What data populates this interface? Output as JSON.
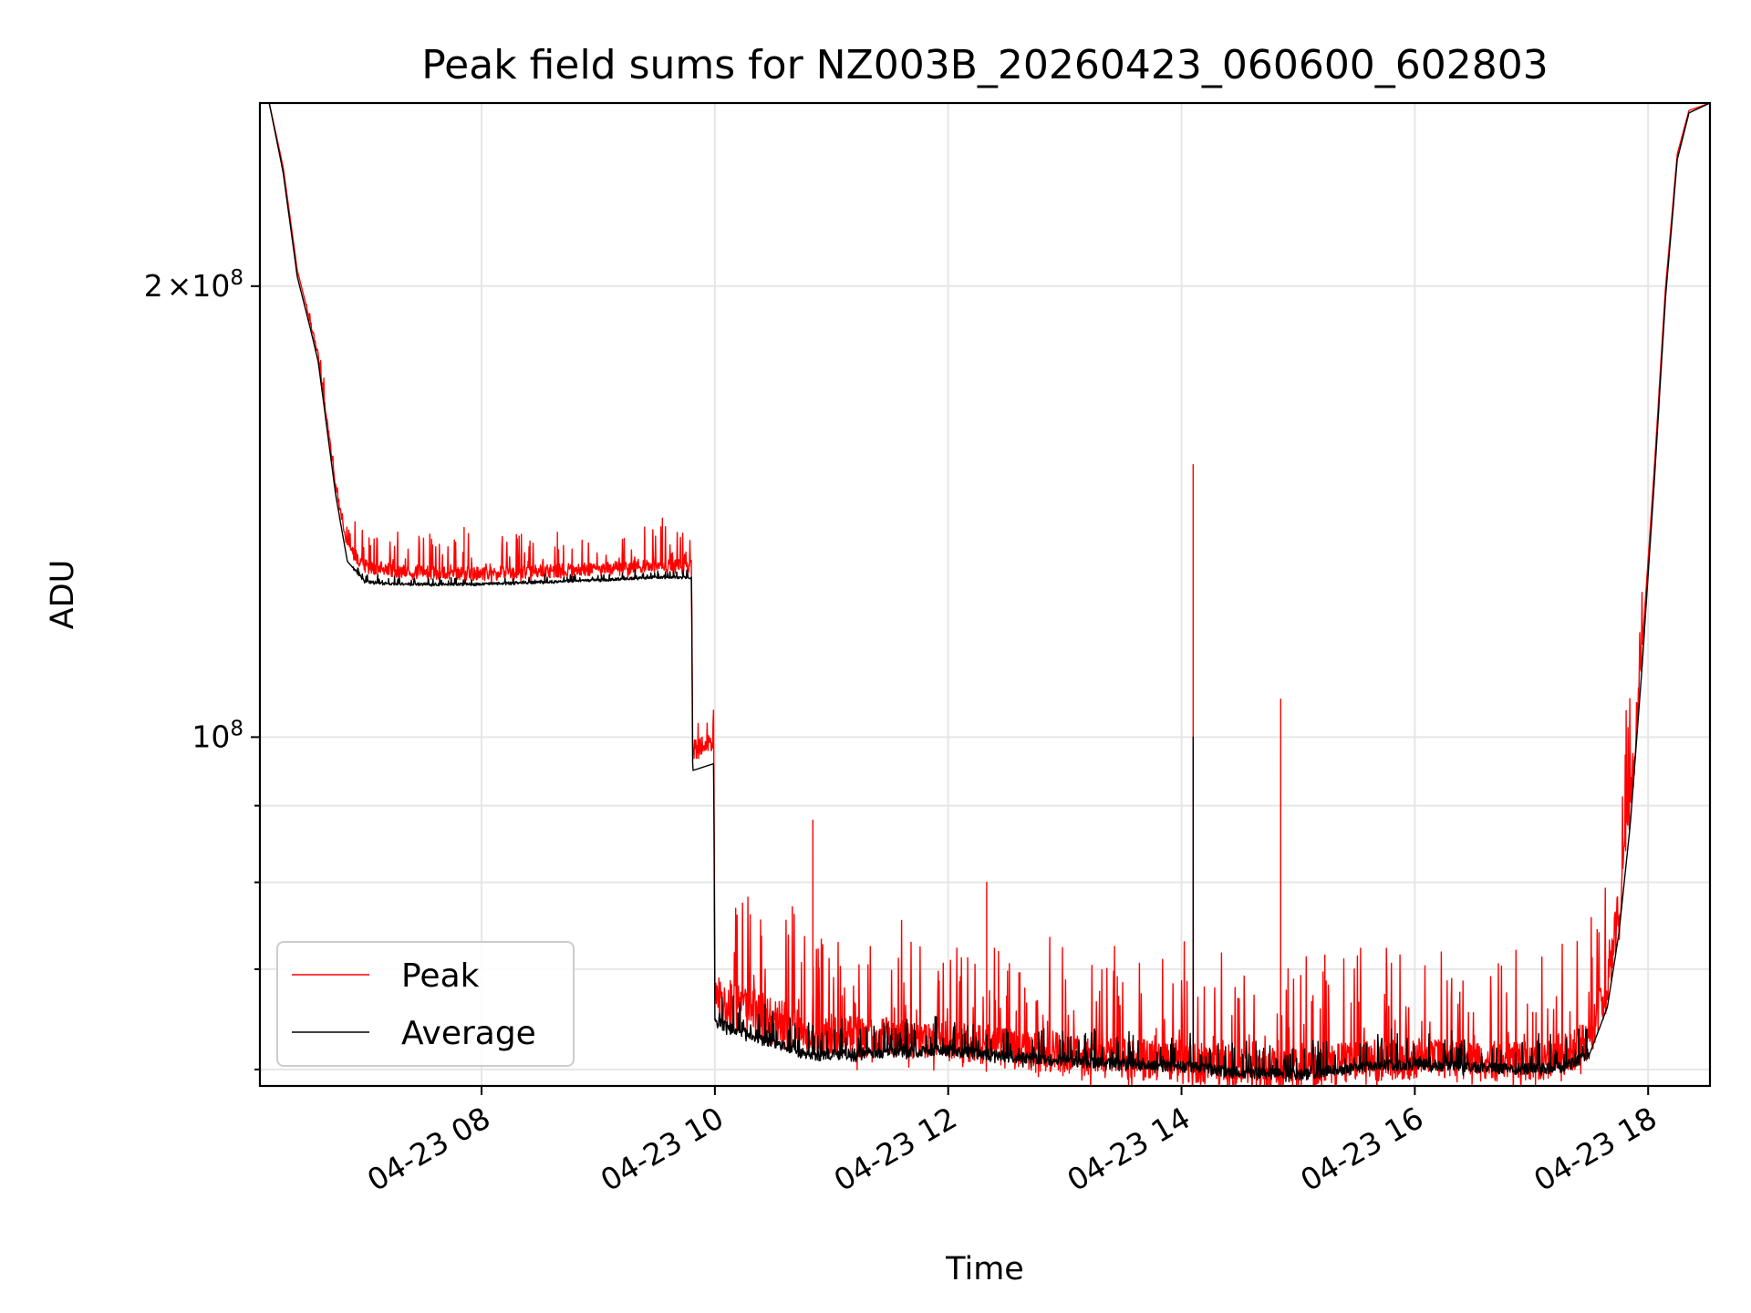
{
  "chart_data": {
    "type": "line",
    "title": "Peak field sums for NZ003B_20260423_060600_602803",
    "xlabel": "Time",
    "ylabel": "ADU",
    "yscale": "log",
    "ylim": [
      58500000,
      265000000
    ],
    "xlim_hours": [
      6.1,
      18.53
    ],
    "x_ticks": [
      {
        "hour": 8,
        "label": "04-23 08"
      },
      {
        "hour": 10,
        "label": "04-23 10"
      },
      {
        "hour": 12,
        "label": "04-23 12"
      },
      {
        "hour": 14,
        "label": "04-23 14"
      },
      {
        "hour": 16,
        "label": "04-23 16"
      },
      {
        "hour": 18,
        "label": "04-23 18"
      }
    ],
    "y_major_ticks": [
      {
        "value": 100000000,
        "base": "10",
        "exp": "8"
      },
      {
        "value": 200000000,
        "mult": "2",
        "times": "×",
        "base": "10",
        "exp": "8"
      }
    ],
    "y_minor_ticks": [
      60000000,
      70000000,
      80000000,
      90000000
    ],
    "grid": true,
    "legend": {
      "position": "lower-left",
      "entries": [
        "Peak",
        "Average"
      ]
    },
    "colors": {
      "Peak": "#ff0000",
      "Average": "#000000",
      "grid": "#e6e6e6",
      "frame": "#000000"
    },
    "series": [
      {
        "name": "Peak",
        "base_points": [
          [
            6.1,
            265000000
          ],
          [
            6.18,
            265000000
          ],
          [
            6.3,
            240000000
          ],
          [
            6.42,
            205000000
          ],
          [
            6.55,
            187000000
          ],
          [
            6.6,
            180000000
          ],
          [
            6.75,
            147000000
          ],
          [
            6.85,
            134000000
          ],
          [
            7.0,
            130000000
          ],
          [
            7.3,
            129000000
          ],
          [
            8.0,
            128500000
          ],
          [
            9.0,
            129500000
          ],
          [
            9.5,
            130000000
          ],
          [
            9.8,
            130000000
          ],
          [
            9.81,
            98000000
          ],
          [
            9.99,
            99000000
          ],
          [
            10.0,
            67000000
          ],
          [
            10.3,
            65500000
          ],
          [
            10.8,
            63500000
          ],
          [
            11.5,
            63000000
          ],
          [
            12.0,
            62700000
          ],
          [
            12.5,
            62000000
          ],
          [
            13.0,
            61500000
          ],
          [
            13.5,
            61000000
          ],
          [
            14.0,
            60800000
          ],
          [
            14.5,
            60200000
          ],
          [
            15.0,
            60000000
          ],
          [
            15.5,
            60800000
          ],
          [
            16.0,
            61000000
          ],
          [
            16.5,
            60800000
          ],
          [
            17.0,
            60700000
          ],
          [
            17.3,
            61500000
          ],
          [
            17.5,
            63000000
          ],
          [
            17.65,
            68000000
          ],
          [
            17.75,
            77000000
          ],
          [
            17.85,
            90000000
          ],
          [
            17.95,
            115000000
          ],
          [
            18.05,
            150000000
          ],
          [
            18.15,
            200000000
          ],
          [
            18.25,
            245000000
          ],
          [
            18.35,
            262000000
          ],
          [
            18.53,
            265000000
          ]
        ],
        "noise_segments": [
          {
            "from": 6.5,
            "to": 6.9,
            "spike_max": 0.03
          },
          {
            "from": 6.9,
            "to": 9.8,
            "spike_max": 0.06
          },
          {
            "from": 9.82,
            "to": 9.99,
            "spike_max": 0.09
          },
          {
            "from": 10.0,
            "to": 10.7,
            "spike_max": 0.22
          },
          {
            "from": 10.7,
            "to": 17.5,
            "spike_max": 0.18
          },
          {
            "from": 17.5,
            "to": 17.95,
            "spike_max": 0.2
          }
        ],
        "spikes": [
          [
            7.85,
            138000000
          ],
          [
            8.65,
            137000000
          ],
          [
            9.55,
            140000000
          ],
          [
            10.84,
            88000000
          ],
          [
            12.33,
            80000000
          ],
          [
            14.1,
            152000000
          ],
          [
            14.85,
            106000000
          ]
        ]
      },
      {
        "name": "Average",
        "base_points": [
          [
            6.1,
            265000000
          ],
          [
            6.18,
            265000000
          ],
          [
            6.3,
            238000000
          ],
          [
            6.42,
            203000000
          ],
          [
            6.55,
            185000000
          ],
          [
            6.6,
            178000000
          ],
          [
            6.75,
            145000000
          ],
          [
            6.85,
            131000000
          ],
          [
            7.0,
            127000000
          ],
          [
            7.3,
            126500000
          ],
          [
            8.0,
            126500000
          ],
          [
            9.0,
            127300000
          ],
          [
            9.5,
            127800000
          ],
          [
            9.8,
            127800000
          ],
          [
            9.81,
            95000000
          ],
          [
            9.99,
            96000000
          ],
          [
            10.0,
            64500000
          ],
          [
            10.3,
            63300000
          ],
          [
            10.8,
            61300000
          ],
          [
            11.5,
            61600000
          ],
          [
            12.0,
            61800000
          ],
          [
            12.5,
            61200000
          ],
          [
            13.0,
            60800000
          ],
          [
            13.5,
            60500000
          ],
          [
            14.0,
            60300000
          ],
          [
            14.5,
            59700000
          ],
          [
            15.0,
            59500000
          ],
          [
            15.5,
            60200000
          ],
          [
            16.0,
            60500000
          ],
          [
            16.5,
            60200000
          ],
          [
            17.0,
            60000000
          ],
          [
            17.3,
            60300000
          ],
          [
            17.5,
            61500000
          ],
          [
            17.65,
            66000000
          ],
          [
            17.75,
            74000000
          ],
          [
            17.85,
            88000000
          ],
          [
            17.95,
            112000000
          ],
          [
            18.05,
            147000000
          ],
          [
            18.15,
            197000000
          ],
          [
            18.25,
            243000000
          ],
          [
            18.35,
            261000000
          ],
          [
            18.53,
            265000000
          ]
        ],
        "noise_segments": [
          {
            "from": 6.9,
            "to": 9.8,
            "spike_max": 0.012
          },
          {
            "from": 10.0,
            "to": 17.5,
            "spike_max": 0.05
          }
        ],
        "spikes": [
          [
            14.1,
            100000000
          ]
        ]
      }
    ]
  }
}
